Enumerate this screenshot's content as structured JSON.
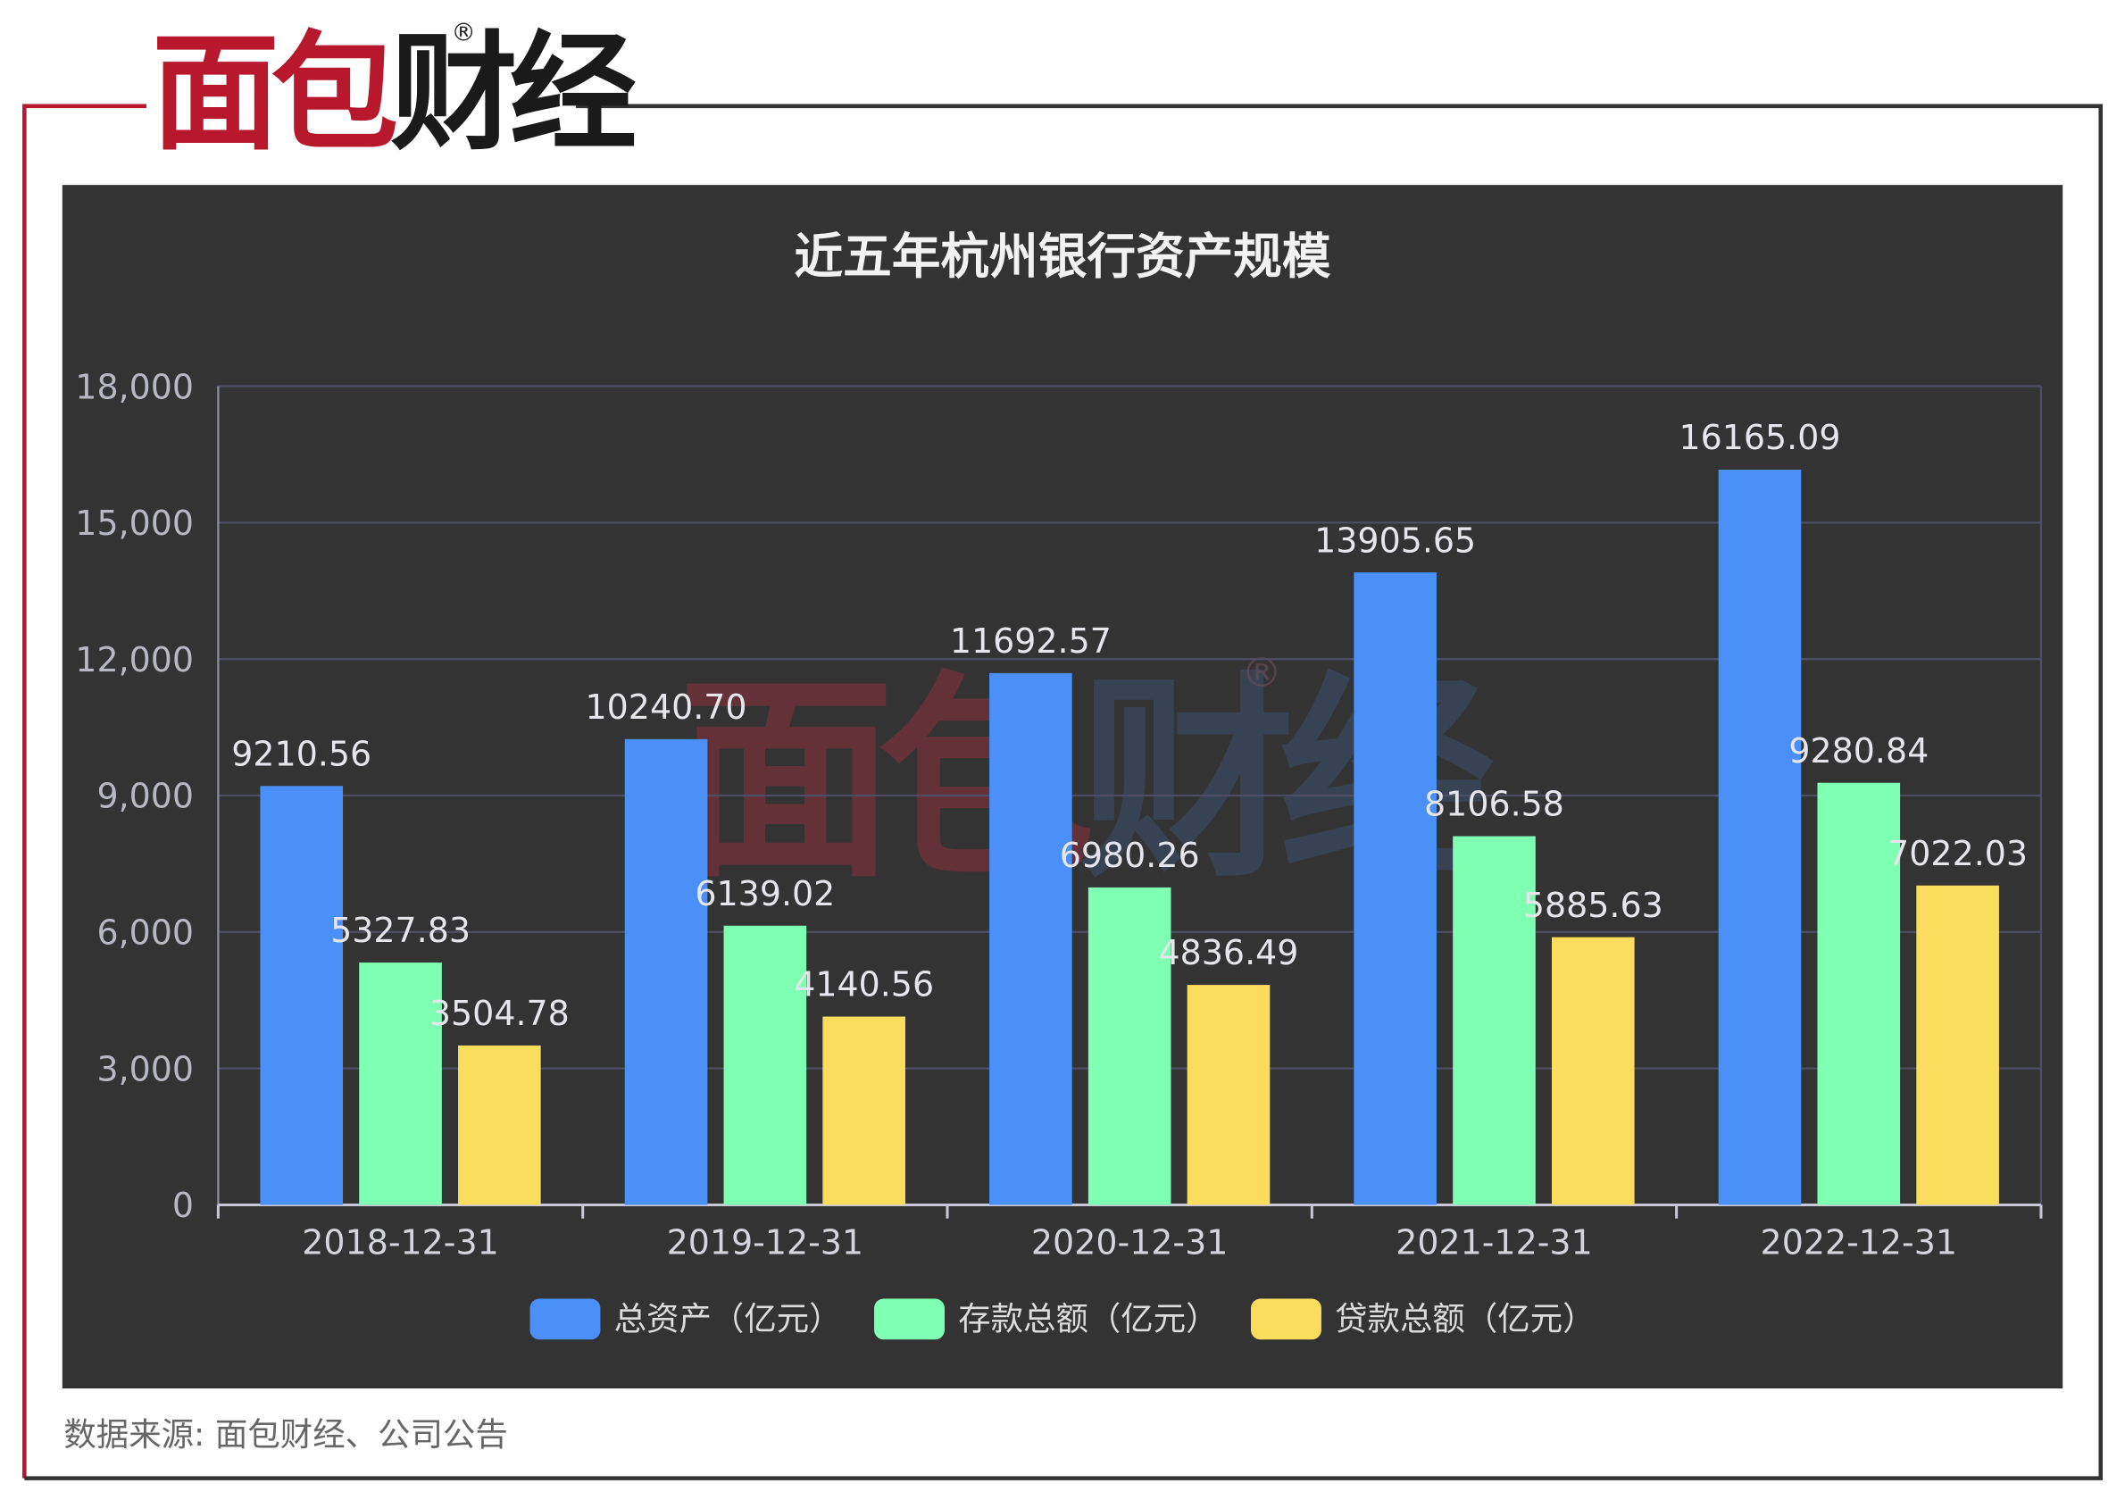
{
  "brand": {
    "logo_red": "面包",
    "logo_dark": "财经",
    "registered_mark": "®",
    "brand_red": "#b7182c",
    "frame_line_color": "#333333"
  },
  "source_note": "数据来源: 面包财经、公司公告",
  "chart_data": {
    "type": "bar",
    "title": "近五年杭州银行资产规模",
    "categories": [
      "2018-12-31",
      "2019-12-31",
      "2020-12-31",
      "2021-12-31",
      "2022-12-31"
    ],
    "series": [
      {
        "name": "总资产（亿元）",
        "values": [
          9210.56,
          10240.7,
          11692.57,
          13905.65,
          16165.09
        ],
        "labels": [
          "9210.56",
          "10240.70",
          "11692.57",
          "13905.65",
          "16165.09"
        ],
        "color": "#4a90f8"
      },
      {
        "name": "存款总额（亿元）",
        "values": [
          5327.83,
          6139.02,
          6980.26,
          8106.58,
          9280.84
        ],
        "labels": [
          "5327.83",
          "6139.02",
          "6980.26",
          "8106.58",
          "9280.84"
        ],
        "color": "#7effb2"
      },
      {
        "name": "贷款总额（亿元）",
        "values": [
          3504.78,
          4140.56,
          4836.49,
          5885.63,
          7022.03
        ],
        "labels": [
          "3504.78",
          "4140.56",
          "4836.49",
          "5885.63",
          "7022.03"
        ],
        "color": "#fbdd5e"
      }
    ],
    "ylim": [
      0,
      18000
    ],
    "y_ticks": [
      0,
      3000,
      6000,
      9000,
      12000,
      15000,
      18000
    ],
    "y_tick_labels": [
      "0",
      "3,000",
      "6,000",
      "9,000",
      "12,000",
      "15,000",
      "18,000"
    ],
    "xlabel": "",
    "ylabel": "",
    "grid": true,
    "legend_position": "bottom",
    "background": "#333333"
  }
}
